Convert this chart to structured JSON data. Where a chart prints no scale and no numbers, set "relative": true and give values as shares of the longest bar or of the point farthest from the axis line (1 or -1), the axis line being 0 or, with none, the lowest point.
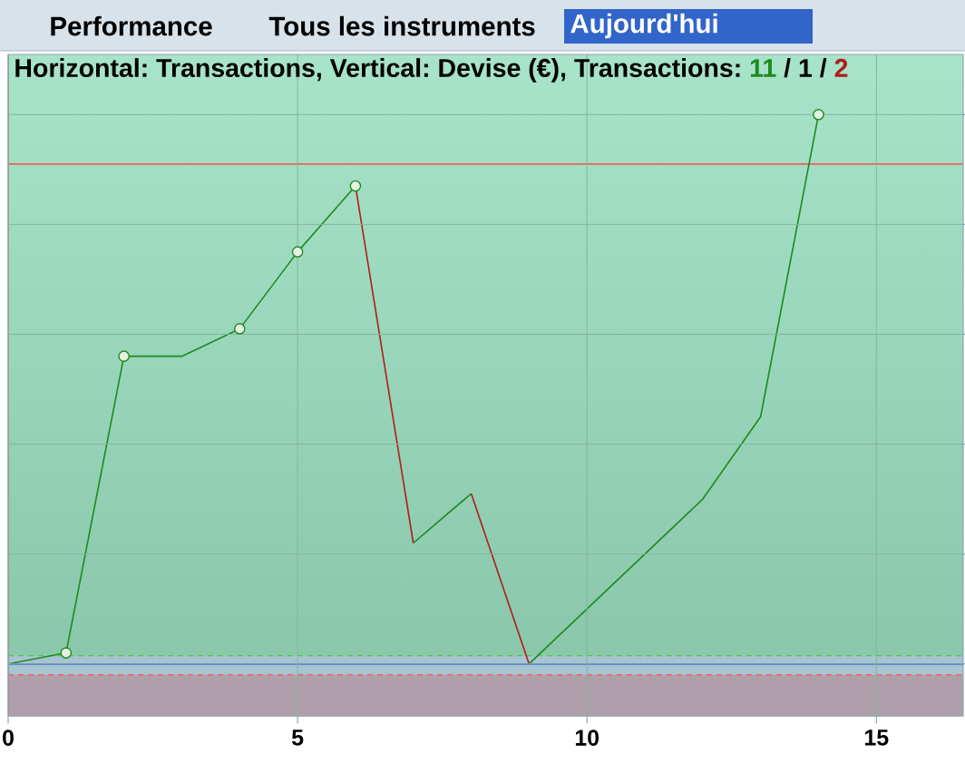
{
  "chart_data": {
    "type": "line",
    "title": "Horizontal: Transactions, Vertical: Devise (€), Transactions:",
    "annotations": [
      "Performance",
      "Tous les instruments",
      "Aujourd'hui",
      "11",
      "/ 1 /",
      "2"
    ],
    "relative": true,
    "series": [
      {
        "x": [
          0,
          1,
          2,
          3,
          4,
          5,
          6
        ],
        "values": [
          0,
          0.02,
          0.56,
          0.56,
          0.61,
          0.75,
          0.87
        ],
        "color": "#1e8a1e"
      },
      {
        "x": [
          6,
          7
        ],
        "values": [
          0.87,
          0.22
        ],
        "color": "#b01c1c"
      },
      {
        "x": [
          7,
          8
        ],
        "values": [
          0.22,
          0.31
        ],
        "color": "#1e8a1e"
      },
      {
        "x": [
          8,
          9
        ],
        "values": [
          0.31,
          0
        ],
        "color": "#b01c1c"
      },
      {
        "x": [
          9,
          10,
          11,
          12,
          13,
          14
        ],
        "values": [
          0,
          0.1,
          0.2,
          0.3,
          0.45,
          1
        ],
        "color": "#1e8a1e"
      },
      {
        "type": "scatter",
        "x": [
          1,
          2,
          4,
          5,
          6,
          14
        ],
        "values": [
          0.02,
          0.56,
          0.61,
          0.75,
          0.87,
          1
        ],
        "color": "#1e8a1e",
        "marker": "circle"
      }
    ],
    "xlim": [
      0,
      16.5
    ],
    "xticks": [
      0,
      5,
      10,
      15
    ],
    "tick_labels": "x",
    "grid": true,
    "ref_lines": [
      {
        "axis": "x",
        "value": 0,
        "color": "#ff4a4a"
      },
      {
        "axis": "y",
        "value": 0.91,
        "color": "#ff4a4a"
      },
      {
        "axis": "y",
        "value": 0.015,
        "color": "#44d044",
        "line_style": "dashed"
      },
      {
        "axis": "y",
        "value": 0,
        "color": "#2233ee"
      },
      {
        "axis": "y",
        "value": -0.02,
        "color": "#ff5a5a",
        "line_style": "dashed"
      }
    ],
    "bands": [
      {
        "axis": "y",
        "from": -0.095,
        "to": -0.02,
        "color": "#ae9fab"
      },
      {
        "axis": "y",
        "from": -0.02,
        "to": 0.015,
        "color": "#a6c4d2"
      }
    ]
  }
}
